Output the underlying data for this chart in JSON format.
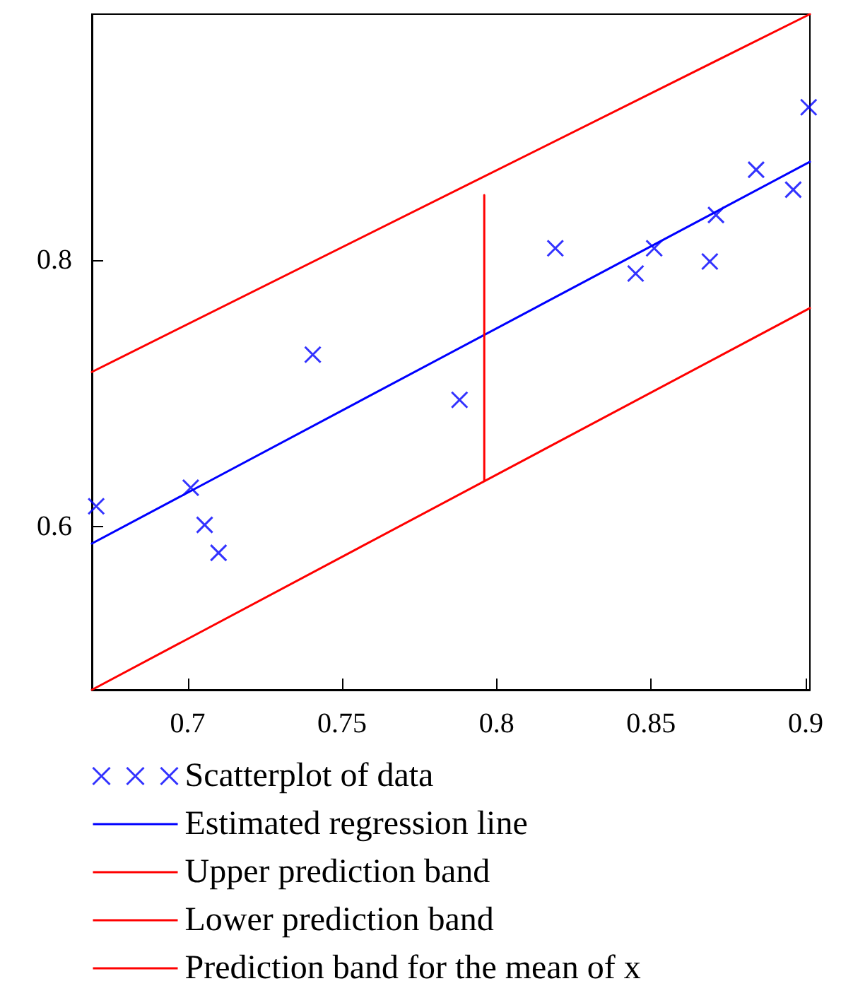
{
  "chart_data": {
    "type": "scatter",
    "xlim": [
      0.669,
      0.9014
    ],
    "ylim": [
      0.477,
      0.985
    ],
    "xticks": [
      0.7,
      0.75,
      0.8,
      0.85,
      0.9
    ],
    "yticks": [
      0.6,
      0.8
    ],
    "grid": false,
    "legend": "bottom",
    "series": [
      {
        "name": "Scatterplot of data",
        "marker": "cross",
        "color": "#0000ff",
        "x": [
          0.6704,
          0.701,
          0.7055,
          0.71,
          0.7405,
          0.788,
          0.819,
          0.845,
          0.851,
          0.869,
          0.871,
          0.884,
          0.896,
          0.901
        ],
        "values": [
          0.615,
          0.629,
          0.601,
          0.58,
          0.729,
          0.695,
          0.809,
          0.79,
          0.809,
          0.799,
          0.834,
          0.868,
          0.853,
          0.915
        ]
      },
      {
        "name": "Estimated regression line",
        "type": "line",
        "marker": "none",
        "line_style": "solid",
        "color": "#0000ff",
        "x": [
          0.669,
          0.9014
        ],
        "values": [
          0.587,
          0.874
        ]
      },
      {
        "name": "Upper prediction band",
        "type": "line",
        "marker": "none",
        "line_style": "solid",
        "color": "#ff0000",
        "x": [
          0.669,
          0.9014
        ],
        "values": [
          0.716,
          0.985
        ]
      },
      {
        "name": "Lower prediction band",
        "type": "line",
        "marker": "none",
        "line_style": "solid",
        "color": "#ff0000",
        "x": [
          0.669,
          0.9014
        ],
        "values": [
          0.477,
          0.764
        ]
      },
      {
        "name": "Prediction band for the mean of x",
        "type": "line",
        "marker": "none",
        "line_style": "solid",
        "color": "#ff0000",
        "x": [
          0.796,
          0.796
        ],
        "values": [
          0.634,
          0.849
        ]
      }
    ]
  }
}
